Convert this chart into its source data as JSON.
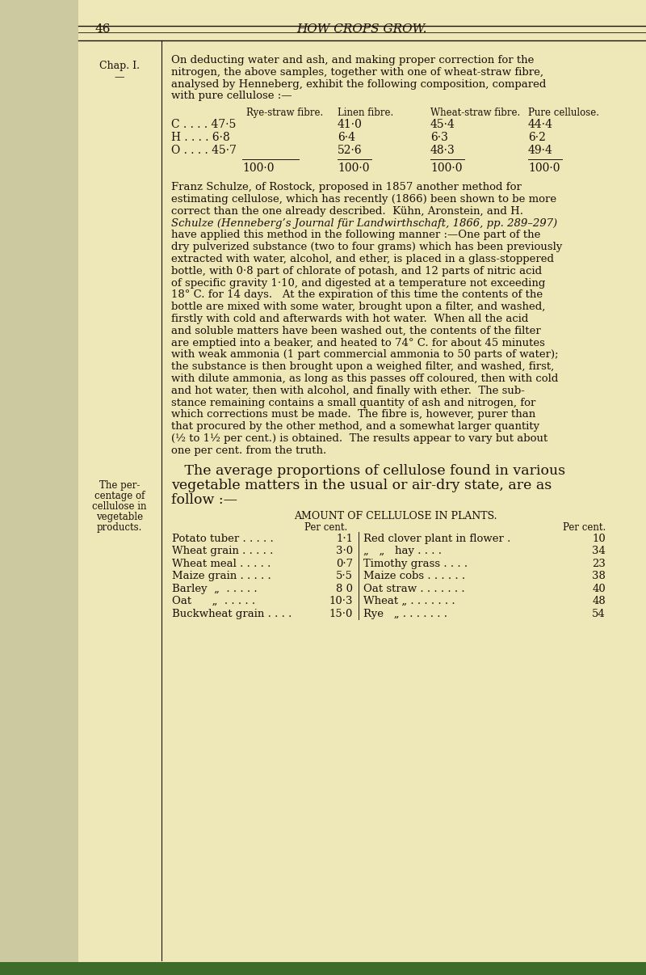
{
  "bg_left": "#ccc9a0",
  "bg_main": "#eee8b8",
  "page_num": "46",
  "header_title": "HOW CROPS GROW.",
  "chap_label": "Chap. I.",
  "chap_dash": "—",
  "sidebar_note": [
    "The per-",
    "centage of",
    "cellulose in",
    "vegetable",
    "products."
  ],
  "intro_lines": [
    "On deducting water and ash, and making proper correction for the",
    "nitrogen, the above samples, together with one of wheat-straw fibre,",
    "analysed by Henneberg, exhibit the following composition, compared",
    "with pure cellulose :—"
  ],
  "t1_col_headers": [
    "Rye-straw fibre.",
    "Linen fibre.",
    "Wheat-straw fibre.",
    "Pure cellulose."
  ],
  "t1_rows": [
    [
      "C . . . . 47·5",
      "41·0",
      "45·4",
      "44·4"
    ],
    [
      "H . . . . 6·8",
      "6·4",
      "6·3",
      "6·2"
    ],
    [
      "O . . . . 45·7",
      "52·6",
      "48·3",
      "49·4"
    ]
  ],
  "t1_totals": [
    "100·0",
    "100·0",
    "100·0",
    "100·0"
  ],
  "body_lines": [
    "Franz Schulze, of Rostock, proposed in 1857 another method for",
    "estimating cellulose, which has recently (1866) been shown to be more",
    "correct than the one already described.  Kühn, Aronstein, and H.",
    "Schulze (Henneberg’s Journal für Landwirthschaft, 1866, pp. 289–297)",
    "have applied this method in the following manner :—One part of the",
    "dry pulverized substance (two to four grams) which has been previously",
    "extracted with water, alcohol, and ether, is placed in a glass-stoppered",
    "bottle, with 0·8 part of chlorate of potash, and 12 parts of nitric acid",
    "of specific gravity 1·10, and digested at a temperature not exceeding",
    "18° C. for 14 days.   At the expiration of this time the contents of the",
    "bottle are mixed with some water, brought upon a filter, and washed,",
    "firstly with cold and afterwards with hot water.  When all the acid",
    "and soluble matters have been washed out, the contents of the filter",
    "are emptied into a beaker, and heated to 74° C. for about 45 minutes",
    "with weak ammonia (1 part commercial ammonia to 50 parts of water);",
    "the substance is then brought upon a weighed filter, and washed, first,",
    "with dilute ammonia, as long as this passes off coloured, then with cold",
    "and hot water, then with alcohol, and finally with ether.  The sub-",
    "stance remaining contains a small quantity of ash and nitrogen, for",
    "which corrections must be made.  The fibre is, however, purer than",
    "that procured by the other method, and a somewhat larger quantity",
    "(½ to 1½ per cent.) is obtained.  The results appear to vary but about",
    "one per cent. from the truth."
  ],
  "italic_line_idx": 3,
  "avg_lines": [
    "   The average proportions of cellulose found in various",
    "vegetable matters in the usual or air-dry state, are as",
    "follow :—"
  ],
  "t2_title": "AMOUNT OF CELLULOSE IN PLANTS.",
  "t2_left": [
    [
      "Potato tuber . . . . .",
      "1·1"
    ],
    [
      "Wheat grain . . . . .",
      "3·0"
    ],
    [
      "Wheat meal . . . . .",
      "0·7"
    ],
    [
      "Maize grain . . . . .",
      "5·5"
    ],
    [
      "Barley  „  . . . . .",
      "8 0"
    ],
    [
      "Oat      „  . . . . .",
      "10·3"
    ],
    [
      "Buckwheat grain . . . .",
      "15·0"
    ]
  ],
  "t2_right": [
    [
      "Red clover plant in flower . 10"
    ],
    [
      "„   „   hay . . . . 34"
    ],
    [
      "Timothy grass . . . . 23"
    ],
    [
      "Maize cobs . . . . . . 38"
    ],
    [
      "Oat straw . . . . . . . 40"
    ],
    [
      "Wheat „ . . . . . . . 48"
    ],
    [
      "Rye   „ . . . . . . . 54"
    ]
  ],
  "t2_right_labels": [
    "Red clover plant in flower .",
    "„   „   hay . . . .",
    "Timothy grass . . . .",
    "Maize cobs . . . . . .",
    "Oat straw . . . . . . .",
    "Wheat „ . . . . . . .",
    "Rye   „ . . . . . . ."
  ],
  "t2_right_vals": [
    "10",
    "34",
    "23",
    "38",
    "40",
    "48",
    "54"
  ],
  "fc": "#1a1008",
  "green_strip": "#3d6b2a"
}
